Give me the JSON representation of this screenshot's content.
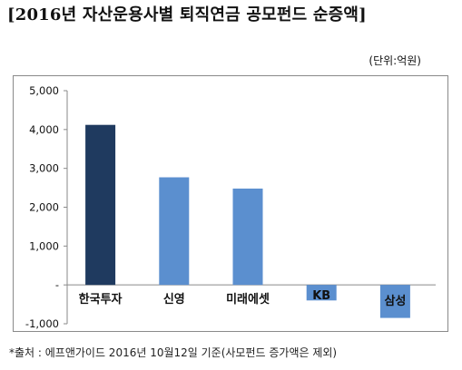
{
  "title": "[2016년 자산운용사별 퇴직연금 공모펀드 순증액]",
  "unit_note": "(단위:억원)",
  "source": "*출처 : 에프앤가이드 2016년 10월12일 기준(사모펀드 증가액은 제외)",
  "chart_data": {
    "type": "bar",
    "categories": [
      "한국투자",
      "신영",
      "미래에셋",
      "KB",
      "삼성"
    ],
    "values": [
      4120,
      2770,
      2480,
      -400,
      -850
    ],
    "ylim": [
      -1000,
      5000
    ],
    "yticks": [
      5000,
      4000,
      3000,
      2000,
      1000,
      0,
      -1000
    ],
    "ytick_labels": [
      "5,000",
      "4,000",
      "3,000",
      "2,000",
      "1,000",
      "-",
      "-1,000"
    ],
    "bar_colors": [
      "#1f3a5f",
      "#5b8fcf",
      "#5b8fcf",
      "#5b8fcf",
      "#5b8fcf"
    ],
    "grid": false,
    "legend": "none"
  }
}
